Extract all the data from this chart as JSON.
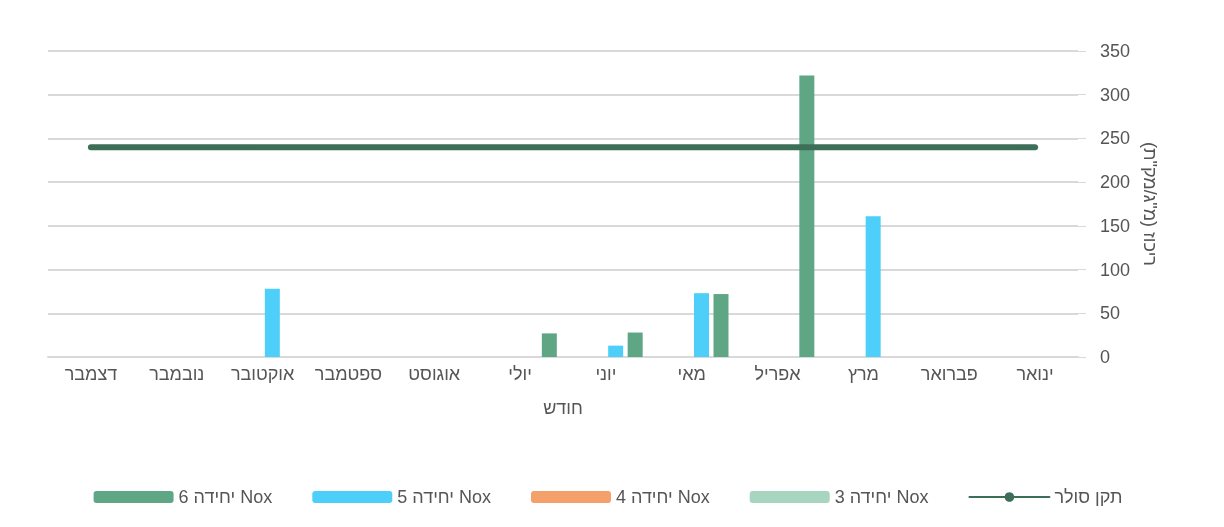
{
  "chart_data": {
    "type": "bar",
    "xlabel": "חודש",
    "ylabel": "ריכוז (מ\"ג/מק\"ת)",
    "categories": [
      "דצמבר",
      "נובמבר",
      "אוקטובר",
      "ספטמבר",
      "אוגוסט",
      "יולי",
      "יוני",
      "מאי",
      "אפריל",
      "מרץ",
      "פברואר",
      "ינואר"
    ],
    "series": [
      {
        "name": "תקן סולר",
        "type": "line",
        "color": "#3d6e58",
        "values": [
          240,
          240,
          240,
          240,
          240,
          240,
          240,
          240,
          240,
          240,
          240,
          240
        ]
      },
      {
        "name": "יחידה 3 Nox",
        "color": "#a8d5bf",
        "values": [
          null,
          null,
          null,
          null,
          null,
          null,
          null,
          null,
          null,
          null,
          null,
          null
        ]
      },
      {
        "name": "יחידה 4 Nox",
        "color": "#f4a06a",
        "values": [
          null,
          null,
          null,
          null,
          null,
          null,
          null,
          null,
          null,
          null,
          null,
          null
        ]
      },
      {
        "name": "יחידה 5 Nox",
        "color": "#4dcffa",
        "values": [
          null,
          null,
          78,
          null,
          null,
          null,
          13,
          73,
          null,
          161,
          null,
          null
        ]
      },
      {
        "name": "יחידה 6 Nox",
        "color": "#5fa784",
        "values": [
          null,
          null,
          null,
          null,
          null,
          27,
          28,
          72,
          322,
          null,
          null,
          null
        ]
      }
    ],
    "ylim": [
      0,
      350
    ],
    "yticks": [
      0,
      50,
      100,
      150,
      200,
      250,
      300,
      350
    ],
    "grid": "y",
    "legend": "bottom",
    "marker": "none",
    "line_style": "solid"
  }
}
